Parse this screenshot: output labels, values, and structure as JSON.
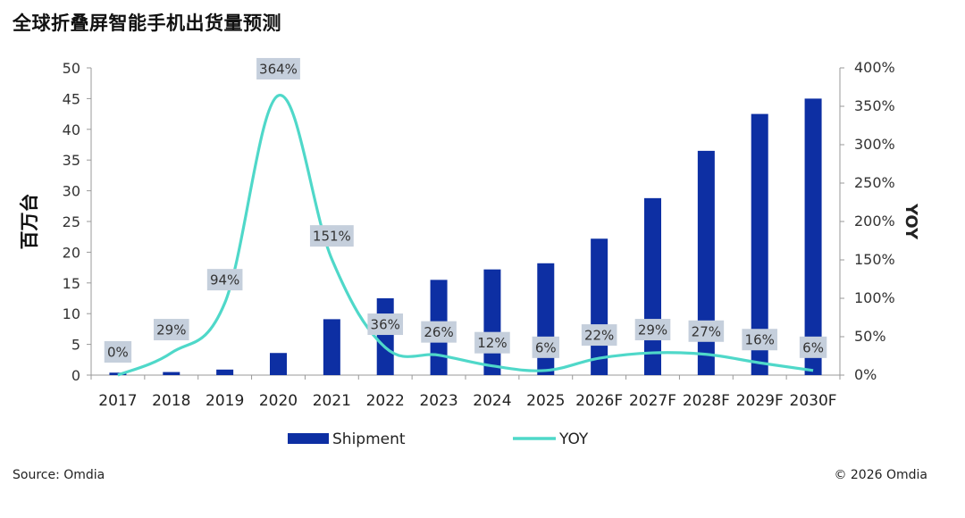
{
  "title": "全球折叠屏智能手机出货量预测",
  "source": "Source: Omdia",
  "copyright": "© 2026 Omdia",
  "colors": {
    "bar": "#0d2fa3",
    "line": "#4fd8c9",
    "label_bg": "#c5cfdc"
  },
  "chart_data": {
    "type": "bar",
    "categories": [
      "2017",
      "2018",
      "2019",
      "2020",
      "2021",
      "2022",
      "2023",
      "2024",
      "2025",
      "2026F",
      "2027F",
      "2028F",
      "2029F",
      "2030F"
    ],
    "series": [
      {
        "name": "Shipment",
        "type": "bar",
        "axis": "left",
        "values": [
          0.4,
          0.5,
          0.9,
          3.6,
          9.1,
          12.5,
          15.5,
          17.2,
          18.2,
          22.2,
          28.8,
          36.5,
          42.5,
          45.0
        ]
      },
      {
        "name": "YOY",
        "type": "line",
        "axis": "right",
        "values": [
          0,
          29,
          94,
          364,
          151,
          36,
          26,
          12,
          6,
          22,
          29,
          27,
          16,
          6
        ],
        "labels": [
          "0%",
          "29%",
          "94%",
          "364%",
          "151%",
          "36%",
          "26%",
          "12%",
          "6%",
          "22%",
          "29%",
          "27%",
          "16%",
          "6%"
        ]
      }
    ],
    "ylabel": "百万台",
    "ylabel_right": "YOY",
    "ylim": [
      0,
      50
    ],
    "ylim_right": [
      0,
      400
    ],
    "yticks": [
      "0",
      "5",
      "10",
      "15",
      "20",
      "25",
      "30",
      "35",
      "40",
      "45",
      "50"
    ],
    "yticks_right": [
      "0%",
      "50%",
      "100%",
      "150%",
      "200%",
      "250%",
      "300%",
      "350%",
      "400%"
    ],
    "legend": [
      "Shipment",
      "YOY"
    ],
    "legend_position": "bottom",
    "grid": false
  }
}
